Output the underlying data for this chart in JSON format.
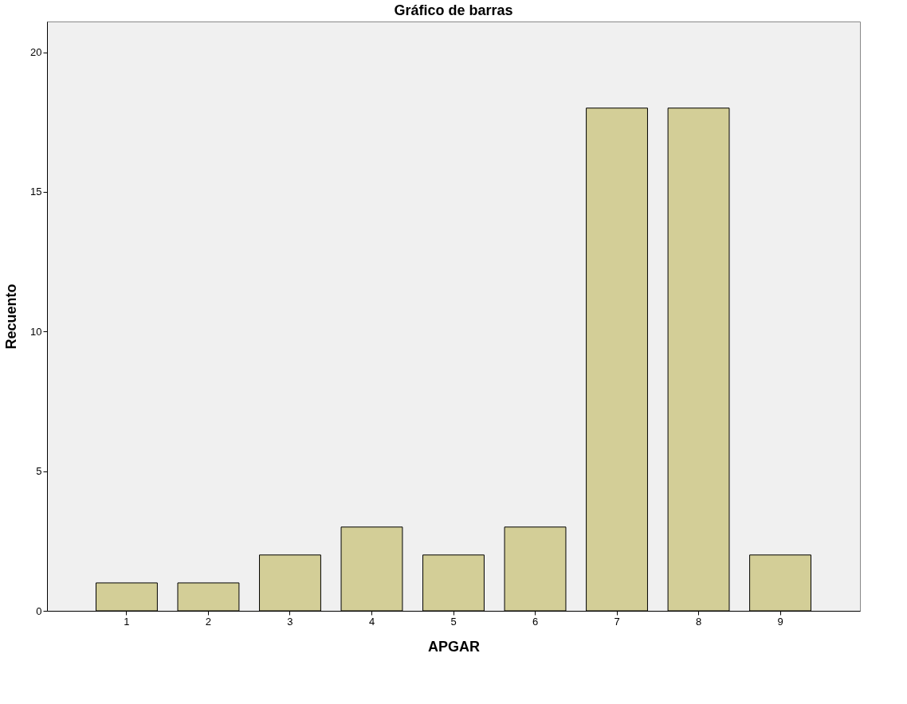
{
  "chart_data": {
    "type": "bar",
    "title": "Gráfico de barras",
    "xlabel": "APGAR",
    "ylabel": "Recuento",
    "categories": [
      "1",
      "2",
      "3",
      "4",
      "5",
      "6",
      "7",
      "8",
      "9"
    ],
    "values": [
      1,
      1,
      2,
      3,
      2,
      3,
      18,
      18,
      2
    ],
    "color": "#d3ce97",
    "ylim": [
      0,
      21.1
    ],
    "yticks": [
      0,
      5,
      10,
      15,
      20
    ],
    "grid": false
  }
}
